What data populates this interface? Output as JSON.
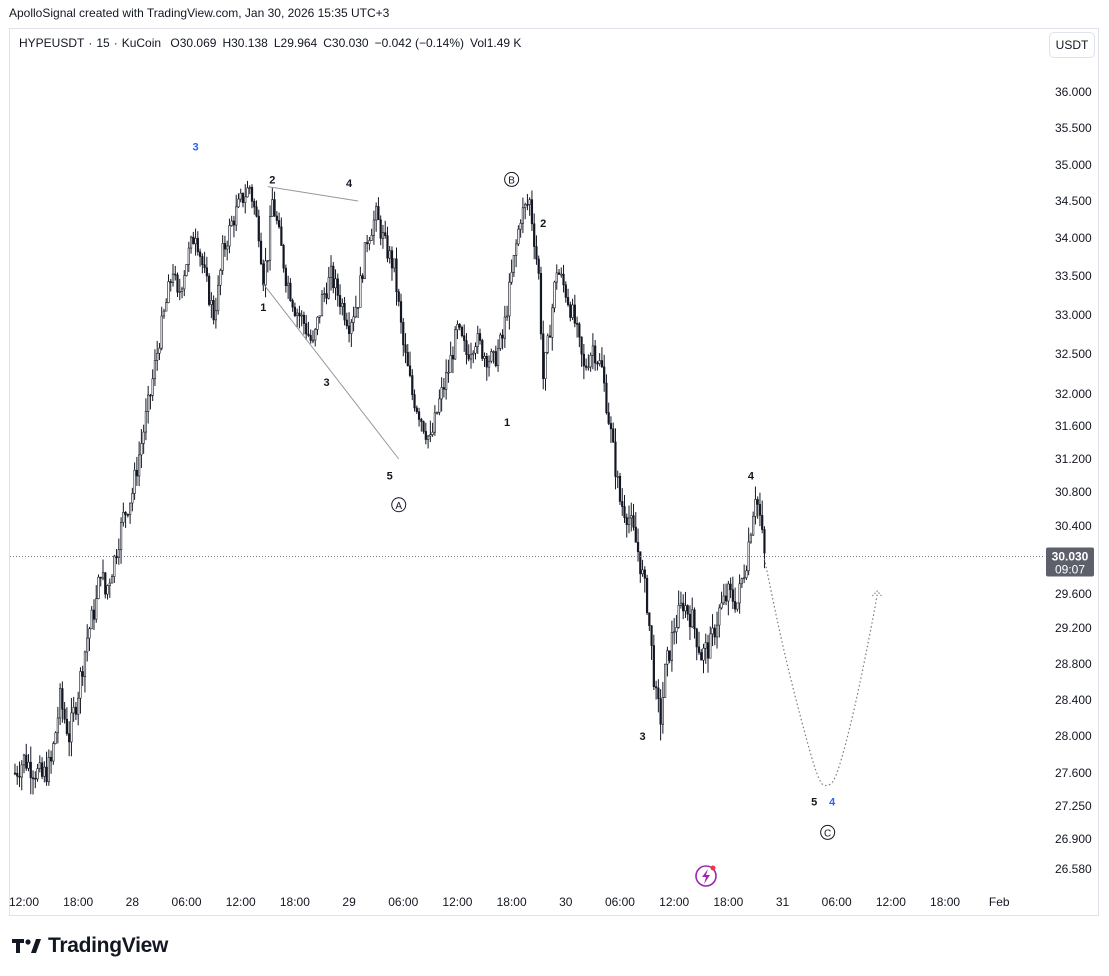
{
  "header": {
    "caption": "ApolloSignal created with TradingView.com, Jan 30, 2026 15:35 UTC+3"
  },
  "legend": {
    "symbol": "HYPEUSDT",
    "interval": "15",
    "exchange": "KuCoin",
    "open_label": "O",
    "open": "30.069",
    "high_label": "H",
    "high": "30.138",
    "low_label": "L",
    "low": "29.964",
    "close_label": "C",
    "close": "30.030",
    "change": "−0.042 (−0.14%)",
    "vol_label": "Vol",
    "vol": "1.49 K"
  },
  "currency_button": {
    "label": "USDT"
  },
  "last_price": {
    "value": "30.030",
    "countdown": "09:07",
    "price": 30.03
  },
  "brand": {
    "name": "TradingView",
    "icon": "tradingview-logo-icon"
  },
  "chart_data": {
    "type": "candlestick",
    "symbol": "HYPEUSDT",
    "timeframe": "15",
    "y_ticks": [
      "36.000",
      "35.500",
      "35.000",
      "34.500",
      "34.000",
      "33.500",
      "33.000",
      "32.500",
      "32.000",
      "31.600",
      "31.200",
      "30.800",
      "30.400",
      "29.600",
      "29.200",
      "28.800",
      "28.400",
      "28.000",
      "27.600",
      "27.250",
      "26.900",
      "26.580"
    ],
    "x_ticks": [
      "12:00",
      "18:00",
      "28",
      "06:00",
      "12:00",
      "18:00",
      "29",
      "06:00",
      "12:00",
      "18:00",
      "30",
      "06:00",
      "12:00",
      "18:00",
      "31",
      "06:00",
      "12:00",
      "18:00",
      "Feb"
    ],
    "x_tick_hours": [
      12,
      18,
      24,
      30,
      36,
      42,
      48,
      54,
      60,
      66,
      72,
      78,
      84,
      90,
      96,
      102,
      108,
      114,
      120
    ],
    "price_path": [
      [
        11,
        27.6
      ],
      [
        12,
        27.75
      ],
      [
        14,
        27.55
      ],
      [
        15,
        27.7
      ],
      [
        16,
        28.4
      ],
      [
        17,
        28.0
      ],
      [
        18,
        28.5
      ],
      [
        19,
        29.1
      ],
      [
        20,
        29.5
      ],
      [
        20.5,
        29.9
      ],
      [
        21,
        29.6
      ],
      [
        22,
        30.0
      ],
      [
        23,
        30.5
      ],
      [
        24,
        30.8
      ],
      [
        25,
        31.4
      ],
      [
        26,
        32.0
      ],
      [
        27,
        32.7
      ],
      [
        28,
        33.3
      ],
      [
        28.5,
        33.6
      ],
      [
        29,
        33.2
      ],
      [
        30,
        33.7
      ],
      [
        31,
        34.1
      ],
      [
        32,
        33.5
      ],
      [
        33,
        33.0
      ],
      [
        33.5,
        33.3
      ],
      [
        34,
        33.8
      ],
      [
        35,
        34.2
      ],
      [
        36,
        34.5
      ],
      [
        37,
        34.7
      ],
      [
        38,
        34.1
      ],
      [
        38.5,
        33.5
      ],
      [
        39,
        33.8
      ],
      [
        39.5,
        34.5
      ],
      [
        40,
        34.2
      ],
      [
        41,
        33.5
      ],
      [
        42,
        33.1
      ],
      [
        43,
        32.9
      ],
      [
        44,
        32.6
      ],
      [
        45,
        33.2
      ],
      [
        46,
        33.5
      ],
      [
        47,
        33.2
      ],
      [
        48,
        32.9
      ],
      [
        49,
        33.2
      ],
      [
        50,
        34.0
      ],
      [
        51,
        34.3
      ],
      [
        52,
        33.9
      ],
      [
        53,
        33.6
      ],
      [
        54,
        32.6
      ],
      [
        55,
        32.0
      ],
      [
        56,
        31.7
      ],
      [
        57,
        31.4
      ],
      [
        58,
        31.9
      ],
      [
        59,
        32.3
      ],
      [
        60,
        32.8
      ],
      [
        61,
        32.5
      ],
      [
        62,
        32.7
      ],
      [
        63,
        32.5
      ],
      [
        64,
        32.4
      ],
      [
        65,
        32.7
      ],
      [
        66,
        33.5
      ],
      [
        67,
        34.3
      ],
      [
        68,
        34.5
      ],
      [
        69,
        33.5
      ],
      [
        69.5,
        32.2
      ],
      [
        70,
        32.6
      ],
      [
        71,
        33.6
      ],
      [
        72,
        33.3
      ],
      [
        73,
        32.9
      ],
      [
        74,
        32.3
      ],
      [
        75,
        32.6
      ],
      [
        76,
        32.3
      ],
      [
        77,
        31.5
      ],
      [
        78,
        30.7
      ],
      [
        79,
        30.5
      ],
      [
        80,
        30.1
      ],
      [
        81,
        29.5
      ],
      [
        82,
        28.4
      ],
      [
        82.5,
        28.2
      ],
      [
        83,
        28.7
      ],
      [
        84,
        29.2
      ],
      [
        85,
        29.5
      ],
      [
        86,
        29.3
      ],
      [
        87,
        28.9
      ],
      [
        88,
        29.0
      ],
      [
        89,
        29.4
      ],
      [
        90,
        29.6
      ],
      [
        91,
        29.5
      ],
      [
        92,
        30.0
      ],
      [
        93,
        30.8
      ],
      [
        93.5,
        30.5
      ],
      [
        94,
        30.03
      ]
    ],
    "projection": [
      [
        94,
        30.0
      ],
      [
        96,
        29.0
      ],
      [
        98,
        28.2
      ],
      [
        100,
        27.5
      ],
      [
        101,
        27.45
      ],
      [
        102,
        27.55
      ],
      [
        104,
        28.3
      ],
      [
        106,
        29.3
      ],
      [
        106.5,
        29.6
      ]
    ],
    "trendlines": [
      [
        [
          39,
          34.7
        ],
        [
          49,
          34.5
        ]
      ],
      [
        [
          38.5,
          33.4
        ],
        [
          53.5,
          31.2
        ]
      ]
    ],
    "wave_labels": [
      {
        "text": "3",
        "t": 31,
        "p": 35.25,
        "style": "blue"
      },
      {
        "text": "2",
        "t": 39.5,
        "p": 34.8,
        "style": "black"
      },
      {
        "text": "4",
        "t": 48,
        "p": 34.75,
        "style": "black"
      },
      {
        "text": "1",
        "t": 38.5,
        "p": 33.1,
        "style": "black"
      },
      {
        "text": "3",
        "t": 45.5,
        "p": 32.15,
        "style": "black"
      },
      {
        "text": "5",
        "t": 52.5,
        "p": 31.0,
        "style": "black"
      },
      {
        "text": "A",
        "t": 53.5,
        "p": 30.65,
        "style": "circle"
      },
      {
        "text": "B",
        "t": 66,
        "p": 34.8,
        "style": "circle"
      },
      {
        "text": "2",
        "t": 69.5,
        "p": 34.2,
        "style": "black"
      },
      {
        "text": "1",
        "t": 65.5,
        "p": 31.65,
        "style": "black"
      },
      {
        "text": "3",
        "t": 80.5,
        "p": 28.0,
        "style": "black"
      },
      {
        "text": "4",
        "t": 92.5,
        "p": 31.0,
        "style": "black"
      },
      {
        "text": "5",
        "t": 99.5,
        "p": 27.3,
        "style": "black"
      },
      {
        "text": "4",
        "t": 101.5,
        "p": 27.3,
        "style": "blue"
      },
      {
        "text": "C",
        "t": 101,
        "p": 26.97,
        "style": "circle"
      }
    ]
  }
}
